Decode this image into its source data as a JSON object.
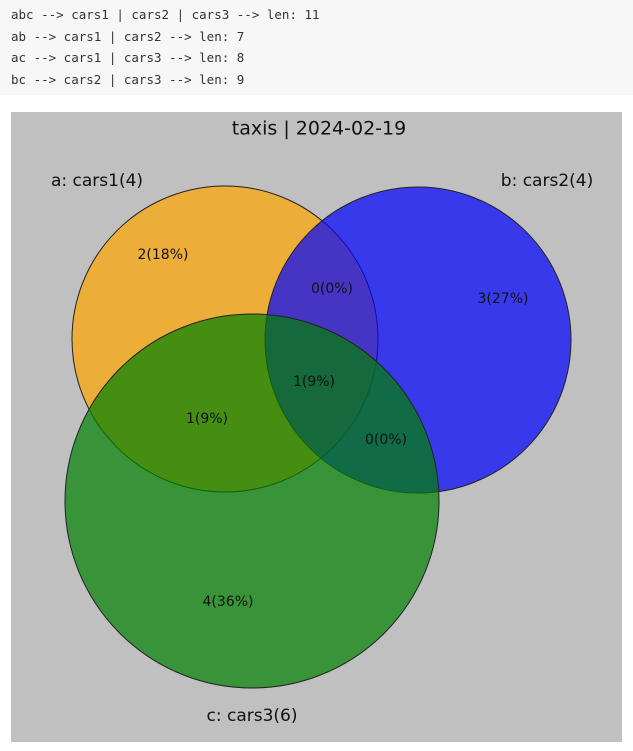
{
  "output": {
    "lines": [
      "abc --> cars1 | cars2 | cars3 --> len: 11",
      "ab --> cars1 | cars2 --> len: 7",
      "ac --> cars1 | cars3 --> len: 8",
      "bc --> cars2 | cars3 --> len: 9"
    ]
  },
  "chart_data": {
    "type": "venn",
    "title": "taxis | 2024-02-19",
    "sets": [
      {
        "name": "a: cars1(4)",
        "color": "orange"
      },
      {
        "name": "b: cars2(4)",
        "color": "blue"
      },
      {
        "name": "c: cars3(6)",
        "color": "green"
      }
    ],
    "values": [
      2,
      0,
      3,
      1,
      1,
      0,
      4
    ],
    "value_labels": [
      "2(18%)",
      "0(0%)",
      "3(27%)",
      "1(9%)",
      "1(9%)",
      "0(0%)",
      "4(36%)"
    ]
  }
}
